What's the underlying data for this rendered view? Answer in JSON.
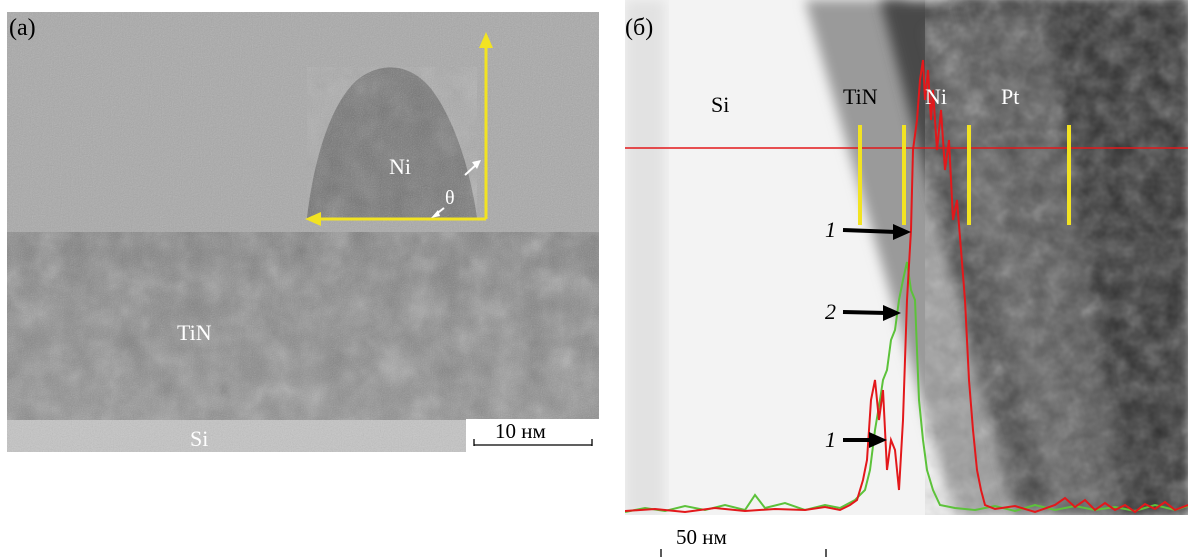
{
  "panel_a": {
    "label": "(а)",
    "region_labels": {
      "ni": "Ni",
      "angle": "θ",
      "tin": "TiN",
      "si": "Si"
    },
    "scale_bar": "10 нм"
  },
  "panel_b": {
    "label": "(б)",
    "region_labels": {
      "si": "Si",
      "tin": "TiN",
      "ni": "Ni",
      "pt": "Pt"
    },
    "arrows": [
      "1",
      "2",
      "1"
    ],
    "scale_bar": "50 нм"
  },
  "colors": {
    "marker_yellow": "#f2e322",
    "profile_red": "#e3181b",
    "profile_green": "#5cc23a"
  },
  "icons": {
    "arrow": "right-arrow-icon",
    "angle_marker": "angle-arc-icon"
  }
}
